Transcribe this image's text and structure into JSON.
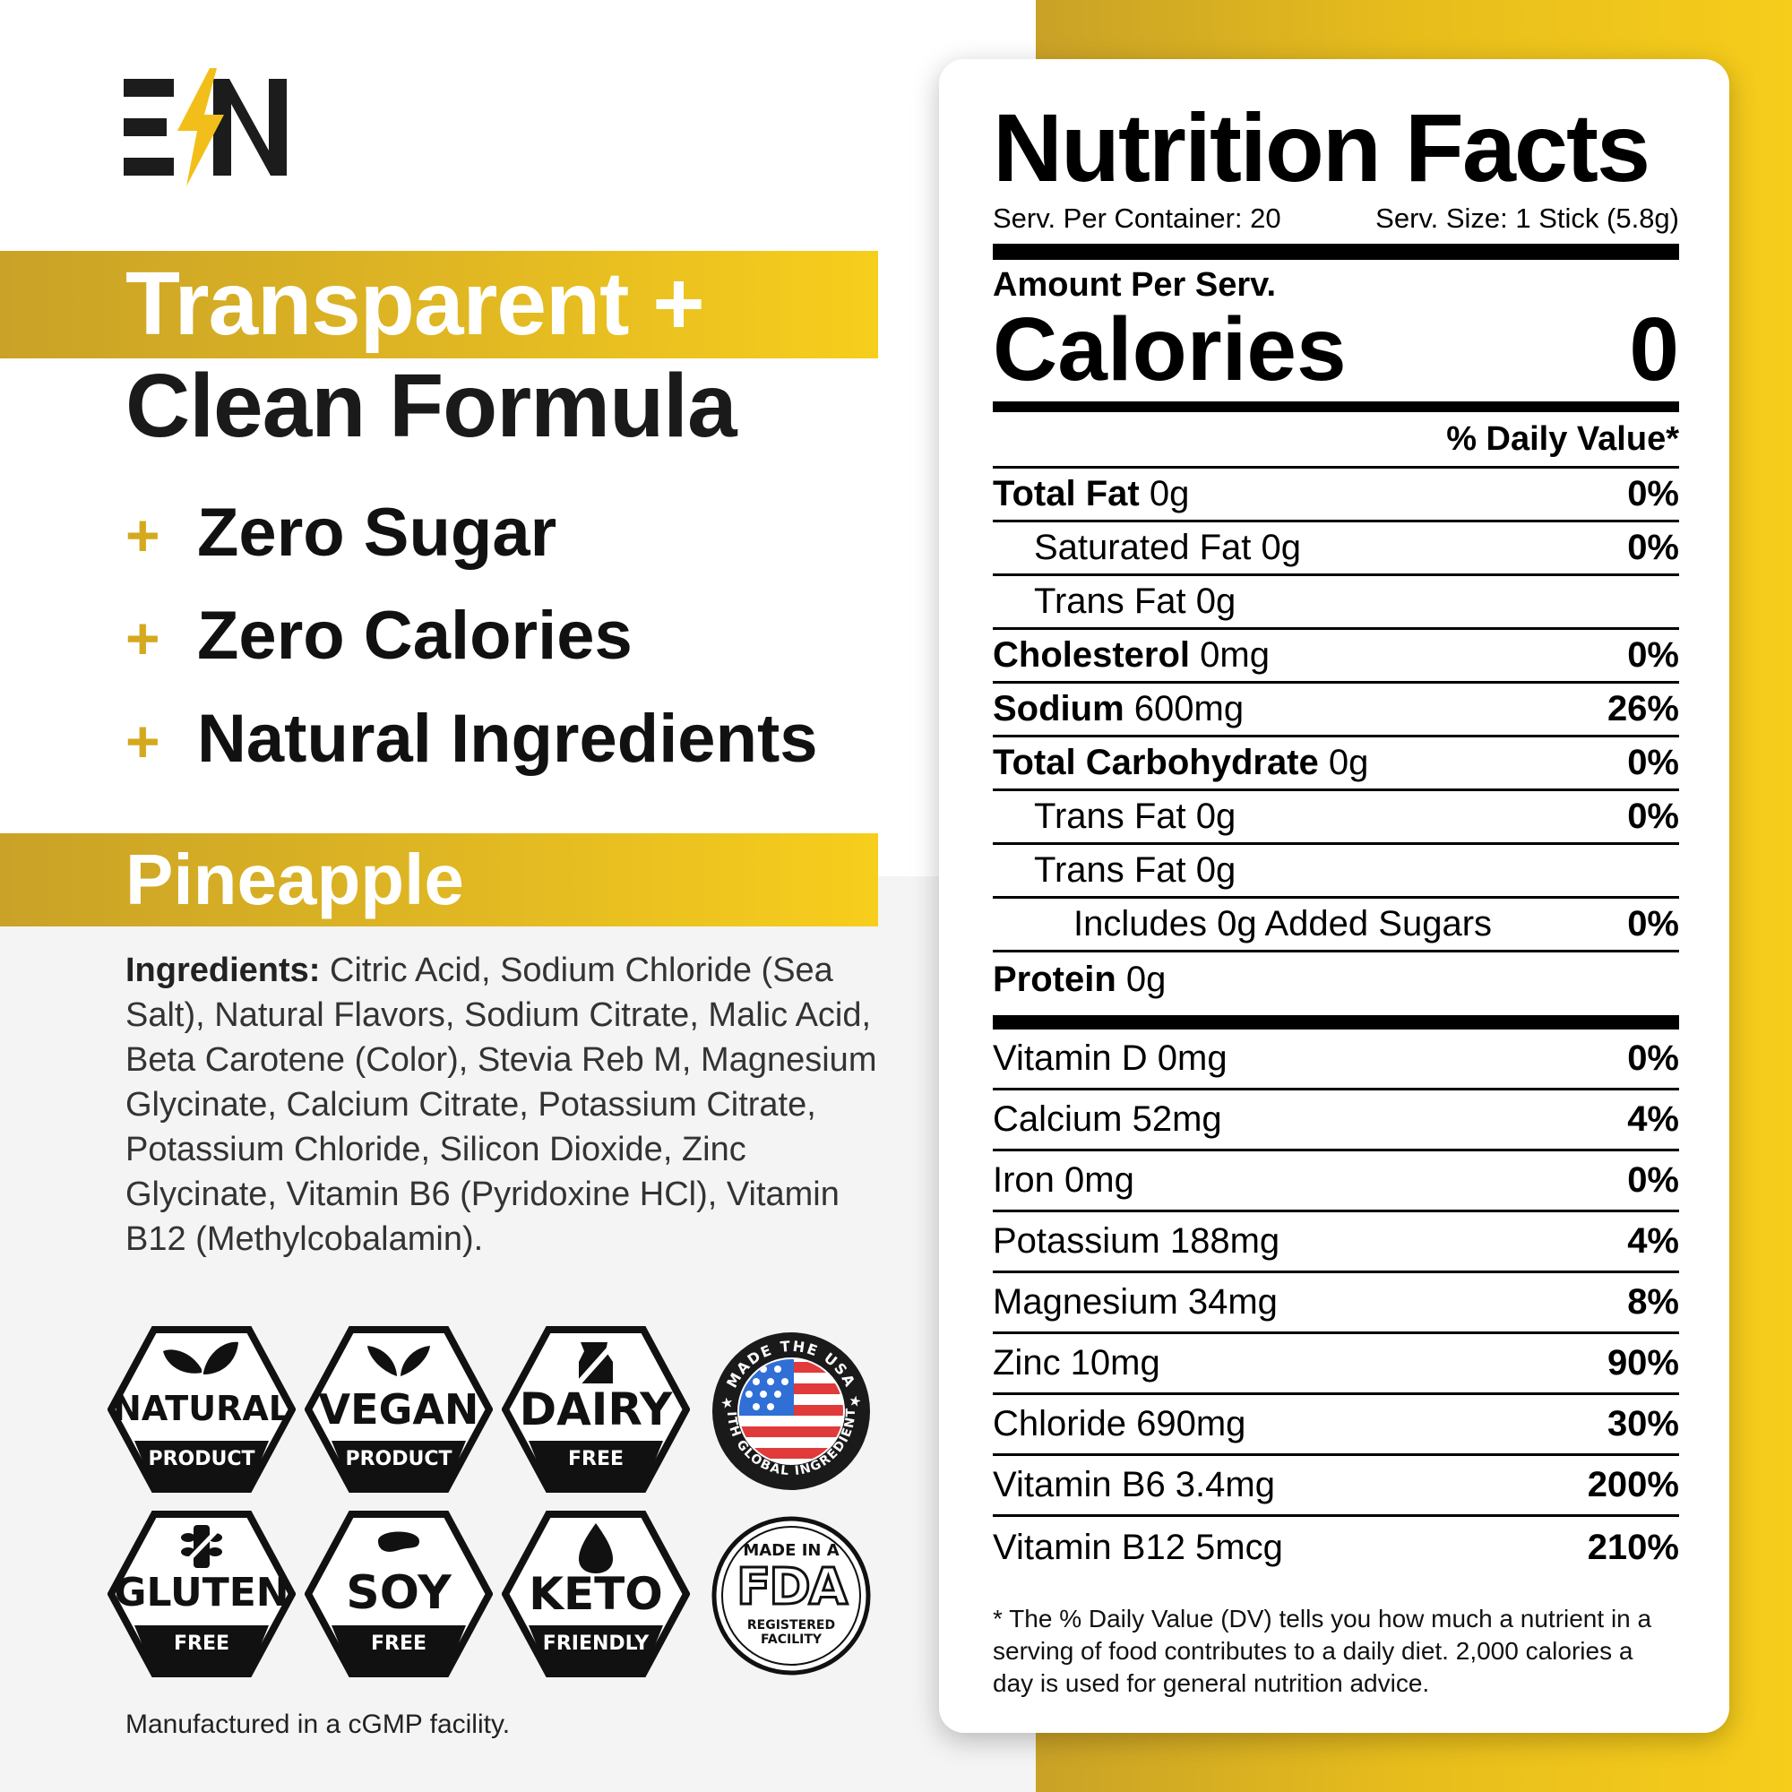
{
  "brand": {
    "logo_text": "EN"
  },
  "headline": {
    "line1": "Transparent +",
    "line2": "Clean Formula"
  },
  "benefits": [
    {
      "plus": "+",
      "text": "Zero Sugar"
    },
    {
      "plus": "+",
      "text": "Zero Calories"
    },
    {
      "plus": "+",
      "text": "Natural Ingredients"
    }
  ],
  "flavor": "Pineapple",
  "ingredients": {
    "label": "Ingredients:",
    "text": " Citric Acid, Sodium Chloride (Sea Salt), Natural Flavors, Sodium Citrate, Malic Acid, Beta Carotene (Color), Stevia Reb M, Magnesium Glycinate, Calcium Citrate, Potassium Citrate, Potassium Chloride, Silicon Dioxide, Zinc Glycinate, Vitamin B6 (Pyridoxine HCl), Vitamin B12 (Methylcobalamin)."
  },
  "badges": [
    {
      "top": "NATURAL",
      "bottom": "PRODUCT",
      "icon": "leaf-icon"
    },
    {
      "top": "VEGAN",
      "bottom": "PRODUCT",
      "icon": "leaf-icon"
    },
    {
      "top": "DAIRY",
      "bottom": "FREE",
      "icon": "no-dairy-icon"
    },
    {
      "top": "GLUTEN",
      "bottom": "FREE",
      "icon": "no-gluten-icon"
    },
    {
      "top": "SOY",
      "bottom": "FREE",
      "icon": "bean-icon"
    },
    {
      "top": "KETO",
      "bottom": "FRIENDLY",
      "icon": "drop-icon"
    }
  ],
  "seals": {
    "usa": {
      "text": "MADE THE USA · WITH GLOBAL INGREDIENTS"
    },
    "fda": {
      "top": "MADE IN A",
      "mark": "FDA",
      "bottom1": "REGISTERED",
      "bottom2": "FACILITY"
    }
  },
  "manufactured": "Manufactured in a cGMP facility.",
  "nutrition": {
    "title": "Nutrition Facts",
    "serv_per_container": "Serv. Per Container: 20",
    "serv_size": "Serv. Size: 1 Stick (5.8g)",
    "amount_per": "Amount Per Serv.",
    "calories_label": "Calories",
    "calories_value": "0",
    "dv_header": "% Daily Value*",
    "rows": [
      {
        "bold": "Total Fat",
        "name": " 0g",
        "pct": "0%",
        "indent": 0
      },
      {
        "bold": "",
        "name": "Saturated Fat 0g",
        "pct": "0%",
        "indent": 1
      },
      {
        "bold": "",
        "name": "Trans Fat 0g",
        "pct": "",
        "indent": 1
      },
      {
        "bold": "Cholesterol",
        "name": " 0mg",
        "pct": "0%",
        "indent": 0
      },
      {
        "bold": "Sodium",
        "name": " 600mg",
        "pct": "26%",
        "indent": 0
      },
      {
        "bold": "Total Carbohydrate",
        "name": " 0g",
        "pct": "0%",
        "indent": 0
      },
      {
        "bold": "",
        "name": "Trans Fat 0g",
        "pct": "0%",
        "indent": 1
      },
      {
        "bold": "",
        "name": "Trans Fat 0g",
        "pct": "",
        "indent": 1
      },
      {
        "bold": "",
        "name": "Includes 0g Added Sugars",
        "pct": "0%",
        "indent": 2
      },
      {
        "bold": "Protein",
        "name": " 0g",
        "pct": "",
        "indent": 0
      }
    ],
    "vitamins": [
      {
        "name": "Vitamin D 0mg",
        "pct": "0%"
      },
      {
        "name": "Calcium 52mg",
        "pct": "4%"
      },
      {
        "name": "Iron 0mg",
        "pct": "0%"
      },
      {
        "name": "Potassium 188mg",
        "pct": "4%"
      },
      {
        "name": "Magnesium 34mg",
        "pct": "8%"
      },
      {
        "name": "Zinc 10mg",
        "pct": "90%"
      },
      {
        "name": "Chloride 690mg",
        "pct": "30%"
      },
      {
        "name": "Vitamin B6 3.4mg",
        "pct": "200%"
      },
      {
        "name": "Vitamin B12 5mcg",
        "pct": "210%"
      }
    ],
    "footnote": "* The % Daily Value (DV) tells you how much a nutrient in a serving of food contributes to a daily diet. 2,000 calories a day is used for general nutrition advice."
  },
  "colors": {
    "gold": "#e7bd1c",
    "plus": "#d4a91e",
    "dark": "#1a1a1a"
  }
}
